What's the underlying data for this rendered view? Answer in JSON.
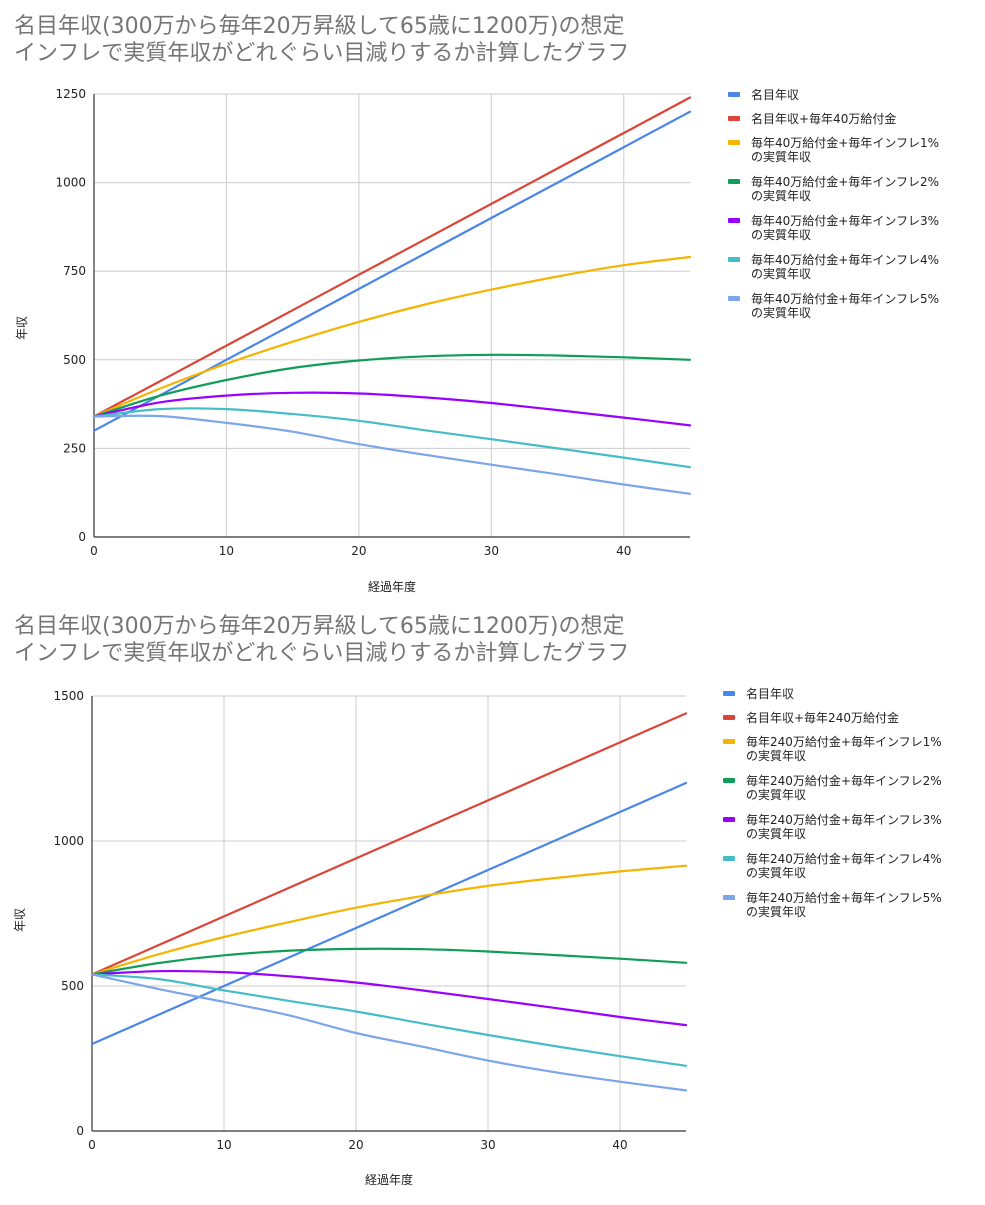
{
  "chart_data": [
    {
      "type": "line",
      "title": [
        "名目年収(300万から毎年20万昇級して65歳に1200万)の想定",
        "インフレで実質年収がどれぐらい目減りするか計算したグラフ"
      ],
      "xlabel": "経過年度",
      "ylabel": "年収",
      "xlim": [
        0,
        45
      ],
      "ylim": [
        0,
        1250
      ],
      "xticks": [
        0,
        10,
        20,
        30,
        40
      ],
      "yticks": [
        0,
        250,
        500,
        750,
        1000,
        1250
      ],
      "grid": true,
      "legend_position": "right",
      "x": [
        0,
        5,
        10,
        15,
        20,
        25,
        30,
        35,
        40,
        45
      ],
      "series": [
        {
          "name": "名目年収",
          "color": "#4a86e8",
          "values": [
            300,
            400,
            500,
            600,
            700,
            800,
            900,
            1000,
            1100,
            1200
          ]
        },
        {
          "name": "名目年収+毎年40万給付金",
          "color": "#db4437",
          "values": [
            340,
            440,
            540,
            640,
            740,
            840,
            940,
            1040,
            1140,
            1240
          ]
        },
        {
          "name": "毎年40万給付金+毎年インフレ1%の実質年収",
          "color": "#f4b400",
          "values": [
            340,
            419,
            489,
            551,
            607,
            656,
            698,
            735,
            767,
            790
          ]
        },
        {
          "name": "毎年40万給付金+毎年インフレ2%の実質年収",
          "color": "#0f9d58",
          "values": [
            340,
            399,
            443,
            477,
            498,
            510,
            514,
            512,
            507,
            500
          ]
        },
        {
          "name": "毎年40万給付金+毎年インフレ3%の実質年収",
          "color": "#9900ff",
          "values": [
            340,
            380,
            399,
            407,
            405,
            394,
            378,
            358,
            337,
            315
          ]
        },
        {
          "name": "毎年40万給付金+毎年インフレ4%の実質年収",
          "color": "#46bdc6",
          "values": [
            340,
            361,
            361,
            347,
            328,
            301,
            276,
            250,
            224,
            197
          ]
        },
        {
          "name": "毎年40万給付金+毎年インフレ5%の実質年収",
          "color": "#7da5ea",
          "values": [
            340,
            341,
            322,
            297,
            262,
            232,
            204,
            177,
            148,
            122
          ]
        }
      ]
    },
    {
      "type": "line",
      "title": [
        "名目年収(300万から毎年20万昇級して65歳に1200万)の想定",
        "インフレで実質年収がどれぐらい目減りするか計算したグラフ"
      ],
      "xlabel": "経過年度",
      "ylabel": "年収",
      "xlim": [
        0,
        45
      ],
      "ylim": [
        0,
        1500
      ],
      "xticks": [
        0,
        10,
        20,
        30,
        40
      ],
      "yticks": [
        0,
        500,
        1000,
        1500
      ],
      "grid": true,
      "legend_position": "right",
      "x": [
        0,
        5,
        10,
        15,
        20,
        25,
        30,
        35,
        40,
        45
      ],
      "series": [
        {
          "name": "名目年収",
          "color": "#4a86e8",
          "values": [
            300,
            400,
            500,
            600,
            700,
            800,
            900,
            1000,
            1100,
            1200
          ]
        },
        {
          "name": "名目年収+毎年240万給付金",
          "color": "#db4437",
          "values": [
            540,
            640,
            740,
            840,
            940,
            1040,
            1140,
            1240,
            1340,
            1440
          ]
        },
        {
          "name": "毎年240万給付金+毎年インフレ1%の実質年収",
          "color": "#f4b400",
          "values": [
            540,
            609,
            669,
            721,
            770,
            810,
            845,
            872,
            895,
            915
          ]
        },
        {
          "name": "毎年240万給付金+毎年インフレ2%の実質年収",
          "color": "#0f9d58",
          "values": [
            540,
            579,
            606,
            622,
            628,
            627,
            619,
            607,
            594,
            580
          ]
        },
        {
          "name": "毎年240万給付金+毎年インフレ3%の実質年収",
          "color": "#9900ff",
          "values": [
            540,
            551,
            548,
            533,
            512,
            485,
            455,
            425,
            393,
            365
          ]
        },
        {
          "name": "毎年240万給付金+毎年インフレ4%の実質年収",
          "color": "#46bdc6",
          "values": [
            540,
            524,
            485,
            448,
            412,
            371,
            331,
            293,
            258,
            225
          ]
        },
        {
          "name": "毎年240万給付金+毎年インフレ5%の実質年収",
          "color": "#7da5ea",
          "values": [
            540,
            490,
            445,
            398,
            338,
            291,
            243,
            203,
            170,
            140
          ]
        }
      ]
    }
  ],
  "legend_display": [
    [
      [
        "名目年収"
      ],
      [
        "名目年収+毎年40万給付金"
      ],
      [
        "毎年40万給付金+毎年インフレ1%",
        "の実質年収"
      ],
      [
        "毎年40万給付金+毎年インフレ2%",
        "の実質年収"
      ],
      [
        "毎年40万給付金+毎年インフレ3%",
        "の実質年収"
      ],
      [
        "毎年40万給付金+毎年インフレ4%",
        "の実質年収"
      ],
      [
        "毎年40万給付金+毎年インフレ5%",
        "の実質年収"
      ]
    ],
    [
      [
        "名目年収"
      ],
      [
        "名目年収+毎年240万給付金"
      ],
      [
        "毎年240万給付金+毎年インフレ1%",
        "の実質年収"
      ],
      [
        "毎年240万給付金+毎年インフレ2%",
        "の実質年収"
      ],
      [
        "毎年240万給付金+毎年インフレ3%",
        "の実質年収"
      ],
      [
        "毎年240万給付金+毎年インフレ4%",
        "の実質年収"
      ],
      [
        "毎年240万給付金+毎年インフレ5%",
        "の実質年収"
      ]
    ]
  ]
}
